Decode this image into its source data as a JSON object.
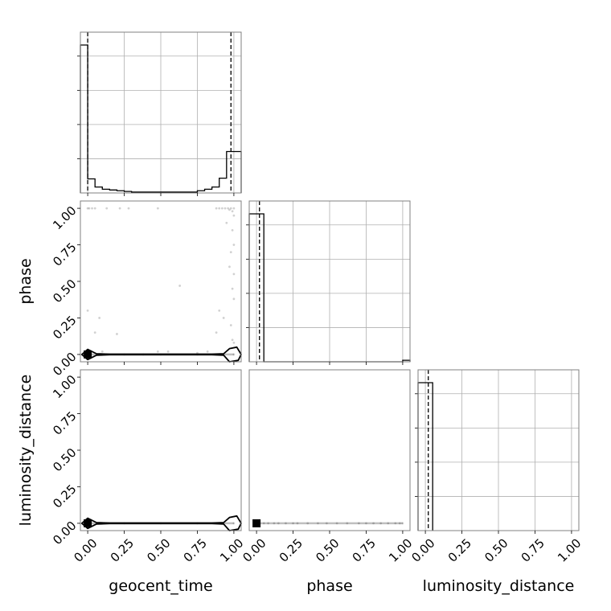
{
  "chart_data": {
    "type": "corner",
    "parameters": [
      "geocent_time",
      "phase",
      "luminosity_distance"
    ],
    "tick_labels": [
      "0.00",
      "0.25",
      "0.50",
      "0.75",
      "1.00"
    ],
    "axis_range": [
      -0.05,
      1.05
    ],
    "grid": true,
    "histograms": [
      {
        "parameter": "geocent_time",
        "bin_edges": [
          -0.05,
          0.0,
          0.05,
          0.1,
          0.15,
          0.2,
          0.25,
          0.3,
          0.35,
          0.4,
          0.45,
          0.5,
          0.55,
          0.6,
          0.65,
          0.7,
          0.75,
          0.8,
          0.85,
          0.9,
          0.95,
          1.0,
          1.05
        ],
        "heights": [
          1.0,
          0.095,
          0.04,
          0.025,
          0.02,
          0.015,
          0.01,
          0.006,
          0.006,
          0.006,
          0.006,
          0.006,
          0.006,
          0.006,
          0.006,
          0.006,
          0.015,
          0.025,
          0.04,
          0.1,
          0.28,
          0.28
        ],
        "quantile_lines": [
          0.0,
          0.98
        ]
      },
      {
        "parameter": "phase",
        "bin_edges": [
          -0.05,
          0.0,
          0.05,
          1.0,
          1.05
        ],
        "heights": [
          1.0,
          1.0,
          0.0,
          0.01
        ],
        "quantile_lines": [
          0.02
        ]
      },
      {
        "parameter": "luminosity_distance",
        "bin_edges": [
          -0.05,
          0.0,
          0.05
        ],
        "heights": [
          1.0,
          1.0
        ],
        "quantile_lines": [
          0.02
        ]
      }
    ],
    "scatter_panels": [
      {
        "x": "geocent_time",
        "y": "phase",
        "marker": [
          0.0,
          0.0
        ],
        "contour_x": [
          -0.04,
          0.0,
          0.06,
          0.15,
          0.3,
          0.5,
          0.7,
          0.85,
          0.93,
          0.97,
          1.02,
          1.05,
          1.03,
          0.97,
          0.93,
          0.85,
          0.7,
          0.5,
          0.3,
          0.15,
          0.06,
          0.0,
          -0.04
        ],
        "contour_y": [
          0.0,
          0.035,
          0.005,
          0.002,
          0.002,
          0.002,
          0.002,
          0.002,
          0.005,
          0.04,
          0.05,
          0.0,
          -0.04,
          -0.05,
          -0.005,
          -0.002,
          -0.002,
          -0.002,
          -0.002,
          -0.002,
          -0.005,
          -0.035,
          0.0
        ],
        "points": [
          [
            0.0,
            0.3
          ],
          [
            0.05,
            0.15
          ],
          [
            0.08,
            0.25
          ],
          [
            0.1,
            0.02
          ],
          [
            0.2,
            0.14
          ],
          [
            0.38,
            0.0
          ],
          [
            0.48,
            0.02
          ],
          [
            0.55,
            0.02
          ],
          [
            0.63,
            0.47
          ],
          [
            0.75,
            0.01
          ],
          [
            0.82,
            0.02
          ],
          [
            0.88,
            0.15
          ],
          [
            0.9,
            0.3
          ],
          [
            0.93,
            0.25
          ],
          [
            0.95,
            0.9
          ],
          [
            0.97,
            0.6
          ],
          [
            0.98,
            0.7
          ],
          [
            0.99,
            0.45
          ],
          [
            0.98,
            0.2
          ],
          [
            0.99,
            0.1
          ],
          [
            0.99,
            0.85
          ],
          [
            1.0,
            0.95
          ],
          [
            1.0,
            0.55
          ],
          [
            1.0,
            0.08
          ],
          [
            1.0,
            0.38
          ],
          [
            0.99,
            0.98
          ],
          [
            0.97,
            0.99
          ],
          [
            1.0,
            0.75
          ],
          [
            0.0,
            1.0
          ],
          [
            0.01,
            1.0
          ],
          [
            0.03,
            1.0
          ],
          [
            0.05,
            1.0
          ],
          [
            0.13,
            1.0
          ],
          [
            0.22,
            1.0
          ],
          [
            0.28,
            1.0
          ],
          [
            0.48,
            1.0
          ],
          [
            0.88,
            1.0
          ],
          [
            0.9,
            1.0
          ],
          [
            0.92,
            1.0
          ],
          [
            0.94,
            1.0
          ],
          [
            0.96,
            1.0
          ],
          [
            0.98,
            1.0
          ],
          [
            1.0,
            1.0
          ],
          [
            0.0,
            0.0
          ],
          [
            0.25,
            0.0
          ],
          [
            0.5,
            0.0
          ],
          [
            0.75,
            0.0
          ],
          [
            1.0,
            0.0
          ]
        ]
      },
      {
        "x": "geocent_time",
        "y": "luminosity_distance",
        "marker": [
          0.0,
          0.0
        ],
        "contour_x": [
          -0.04,
          0.0,
          0.06,
          0.15,
          0.3,
          0.5,
          0.7,
          0.85,
          0.93,
          0.97,
          1.02,
          1.05,
          1.03,
          0.97,
          0.93,
          0.85,
          0.7,
          0.5,
          0.3,
          0.15,
          0.06,
          0.0,
          -0.04
        ],
        "contour_y": [
          0.0,
          0.035,
          0.005,
          0.002,
          0.002,
          0.002,
          0.002,
          0.002,
          0.005,
          0.04,
          0.05,
          0.0,
          -0.04,
          -0.05,
          -0.005,
          -0.002,
          -0.002,
          -0.002,
          -0.002,
          -0.002,
          -0.005,
          -0.035,
          0.0
        ],
        "points": [
          [
            0.0,
            0.0
          ],
          [
            0.25,
            0.0
          ],
          [
            0.5,
            0.0
          ],
          [
            0.75,
            0.0
          ],
          [
            1.0,
            0.0
          ]
        ]
      },
      {
        "x": "phase",
        "y": "luminosity_distance",
        "marker": [
          0.0,
          0.0
        ],
        "contour_x": [],
        "contour_y": [],
        "points": [
          [
            0.02,
            0.0
          ],
          [
            0.05,
            0.0
          ],
          [
            0.08,
            0.0
          ],
          [
            0.12,
            0.0
          ],
          [
            0.15,
            0.0
          ],
          [
            0.2,
            0.0
          ],
          [
            0.25,
            0.0
          ],
          [
            0.28,
            0.0
          ],
          [
            0.35,
            0.0
          ],
          [
            0.42,
            0.0
          ],
          [
            0.48,
            0.0
          ],
          [
            0.55,
            0.0
          ],
          [
            0.62,
            0.0
          ],
          [
            0.7,
            0.0
          ],
          [
            0.75,
            0.0
          ],
          [
            0.8,
            0.0
          ],
          [
            0.85,
            0.0
          ],
          [
            0.9,
            0.0
          ],
          [
            0.95,
            0.0
          ],
          [
            0.98,
            0.0
          ],
          [
            1.0,
            0.0
          ]
        ]
      }
    ]
  }
}
